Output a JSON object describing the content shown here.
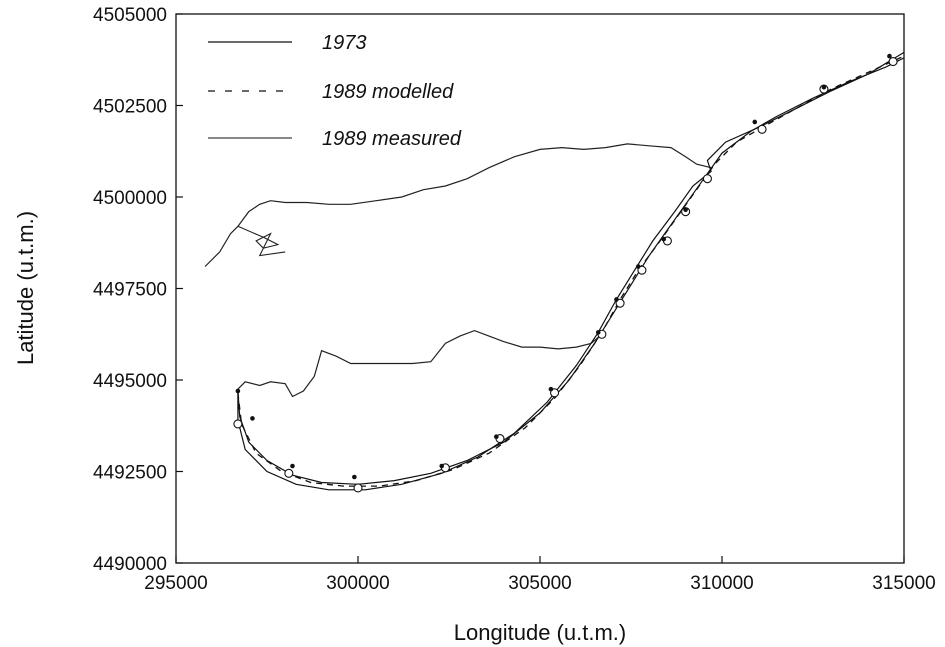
{
  "chart_data": {
    "type": "line",
    "title": "",
    "xlabel": "Longitude (u.t.m.)",
    "ylabel": "Latitude (u.t.m.)",
    "xlim": [
      295000,
      315000
    ],
    "ylim": [
      4490000,
      4505000
    ],
    "x_ticks": [
      295000,
      300000,
      305000,
      310000,
      315000
    ],
    "y_ticks": [
      4490000,
      4492500,
      4495000,
      4497500,
      4500000,
      4502500,
      4505000
    ],
    "x_tick_labels": [
      "295000",
      "300000",
      "305000",
      "310000",
      "315000"
    ],
    "y_tick_labels": [
      "4490000",
      "4492500",
      "4495000",
      "4497500",
      "4500000",
      "4502500",
      "4505000"
    ],
    "grid": false,
    "legend_position": "top-left",
    "series": [
      {
        "name": "1973",
        "style": "solid",
        "points": [
          [
            296700,
            4494700
          ],
          [
            296750,
            4494000
          ],
          [
            297000,
            4493300
          ],
          [
            297500,
            4492800
          ],
          [
            298200,
            4492400
          ],
          [
            299000,
            4492200
          ],
          [
            300000,
            4492150
          ],
          [
            301000,
            4492250
          ],
          [
            302000,
            4492450
          ],
          [
            303000,
            4492800
          ],
          [
            304000,
            4493300
          ],
          [
            305000,
            4494100
          ],
          [
            305800,
            4495000
          ],
          [
            306500,
            4496000
          ],
          [
            307000,
            4496800
          ],
          [
            307500,
            4497600
          ],
          [
            308000,
            4498400
          ],
          [
            308500,
            4499100
          ],
          [
            309000,
            4499800
          ],
          [
            309500,
            4500500
          ],
          [
            310000,
            4501200
          ],
          [
            310800,
            4501800
          ],
          [
            311500,
            4502200
          ],
          [
            312500,
            4502700
          ],
          [
            313500,
            4503150
          ],
          [
            314500,
            4503550
          ],
          [
            315000,
            4503800
          ]
        ]
      },
      {
        "name": "1989 modelled",
        "style": "dashed",
        "points": [
          [
            296700,
            4494650
          ],
          [
            296800,
            4493800
          ],
          [
            297200,
            4493000
          ],
          [
            297900,
            4492500
          ],
          [
            298700,
            4492200
          ],
          [
            299600,
            4492100
          ],
          [
            300600,
            4492100
          ],
          [
            301600,
            4492250
          ],
          [
            302600,
            4492550
          ],
          [
            303600,
            4493000
          ],
          [
            304600,
            4493700
          ],
          [
            305400,
            4494500
          ],
          [
            306100,
            4495400
          ],
          [
            306700,
            4496300
          ],
          [
            307200,
            4497200
          ],
          [
            307700,
            4498000
          ],
          [
            308300,
            4498800
          ],
          [
            308800,
            4499500
          ],
          [
            309300,
            4500200
          ],
          [
            309800,
            4500900
          ],
          [
            310400,
            4501500
          ],
          [
            311100,
            4501900
          ],
          [
            312000,
            4502400
          ],
          [
            313000,
            4502950
          ],
          [
            314000,
            4503400
          ],
          [
            315000,
            4503850
          ]
        ]
      },
      {
        "name": "1989 measured",
        "style": "solid",
        "points": [
          [
            296700,
            4494750
          ],
          [
            296700,
            4493900
          ],
          [
            296900,
            4493100
          ],
          [
            297500,
            4492500
          ],
          [
            298300,
            4492150
          ],
          [
            299200,
            4492000
          ],
          [
            300200,
            4492000
          ],
          [
            301200,
            4492150
          ],
          [
            302300,
            4492450
          ],
          [
            303300,
            4492900
          ],
          [
            304300,
            4493550
          ],
          [
            305200,
            4494400
          ],
          [
            306000,
            4495400
          ],
          [
            306600,
            4496300
          ],
          [
            307100,
            4497200
          ],
          [
            307600,
            4498000
          ],
          [
            308100,
            4498800
          ],
          [
            308700,
            4499600
          ],
          [
            309200,
            4500300
          ],
          [
            309700,
            4500700
          ],
          [
            309600,
            4501000
          ],
          [
            310100,
            4501500
          ],
          [
            311000,
            4501900
          ],
          [
            312000,
            4502400
          ],
          [
            313000,
            4502900
          ],
          [
            314000,
            4503350
          ],
          [
            315000,
            4503950
          ]
        ]
      }
    ],
    "measured_markers_open": [
      [
        296700,
        4493800
      ],
      [
        298100,
        4492450
      ],
      [
        300000,
        4492050
      ],
      [
        302400,
        4492600
      ],
      [
        303900,
        4493400
      ],
      [
        305400,
        4494650
      ],
      [
        306700,
        4496250
      ],
      [
        307200,
        4497100
      ],
      [
        307800,
        4498000
      ],
      [
        308500,
        4498800
      ],
      [
        309000,
        4499600
      ],
      [
        309600,
        4500500
      ],
      [
        311100,
        4501850
      ],
      [
        312800,
        4502950
      ],
      [
        314700,
        4503700
      ]
    ],
    "measured_markers_filled": [
      [
        296700,
        4494700
      ],
      [
        297100,
        4493950
      ],
      [
        298200,
        4492650
      ],
      [
        299900,
        4492350
      ],
      [
        302300,
        4492650
      ],
      [
        303800,
        4493450
      ],
      [
        305300,
        4494750
      ],
      [
        306600,
        4496300
      ],
      [
        307100,
        4497200
      ],
      [
        307700,
        4498100
      ],
      [
        308400,
        4498850
      ],
      [
        309000,
        4499650
      ],
      [
        310900,
        4502050
      ],
      [
        312800,
        4503000
      ],
      [
        314600,
        4503850
      ]
    ],
    "coastline_north": [
      [
        295800,
        4498100
      ],
      [
        296200,
        4498500
      ],
      [
        296500,
        4499000
      ],
      [
        296700,
        4499200
      ],
      [
        297000,
        4499600
      ],
      [
        297300,
        4499800
      ],
      [
        297600,
        4499900
      ],
      [
        298000,
        4499850
      ],
      [
        298600,
        4499850
      ],
      [
        299200,
        4499800
      ],
      [
        299800,
        4499800
      ],
      [
        300500,
        4499900
      ],
      [
        301200,
        4500000
      ],
      [
        301800,
        4500200
      ],
      [
        302400,
        4500300
      ],
      [
        303000,
        4500500
      ],
      [
        303600,
        4500800
      ],
      [
        304300,
        4501100
      ],
      [
        305000,
        4501300
      ],
      [
        305600,
        4501350
      ],
      [
        306200,
        4501300
      ],
      [
        306800,
        4501350
      ],
      [
        307400,
        4501450
      ],
      [
        308000,
        4501400
      ],
      [
        308600,
        4501350
      ],
      [
        309000,
        4501100
      ],
      [
        309300,
        4500900
      ],
      [
        309700,
        4500800
      ]
    ],
    "harbour_north": [
      [
        296700,
        4499200
      ],
      [
        297400,
        4498900
      ],
      [
        297800,
        4498700
      ],
      [
        297400,
        4498600
      ],
      [
        297200,
        4498800
      ],
      [
        297600,
        4499000
      ],
      [
        297300,
        4498400
      ],
      [
        298000,
        4498500
      ]
    ],
    "coastline_south": [
      [
        296700,
        4494750
      ],
      [
        296900,
        4494950
      ],
      [
        297300,
        4494850
      ],
      [
        297600,
        4494950
      ],
      [
        298000,
        4494900
      ],
      [
        298200,
        4494550
      ],
      [
        298500,
        4494700
      ],
      [
        298800,
        4495100
      ],
      [
        299000,
        4495800
      ],
      [
        299400,
        4495650
      ],
      [
        299800,
        4495450
      ],
      [
        300300,
        4495450
      ],
      [
        301000,
        4495450
      ],
      [
        301500,
        4495450
      ],
      [
        302000,
        4495500
      ],
      [
        302400,
        4496000
      ],
      [
        302800,
        4496200
      ],
      [
        303200,
        4496350
      ],
      [
        303600,
        4496200
      ],
      [
        304000,
        4496050
      ],
      [
        304500,
        4495900
      ],
      [
        305000,
        4495900
      ],
      [
        305500,
        4495850
      ],
      [
        306000,
        4495900
      ],
      [
        306400,
        4496000
      ],
      [
        306700,
        4496250
      ]
    ]
  }
}
